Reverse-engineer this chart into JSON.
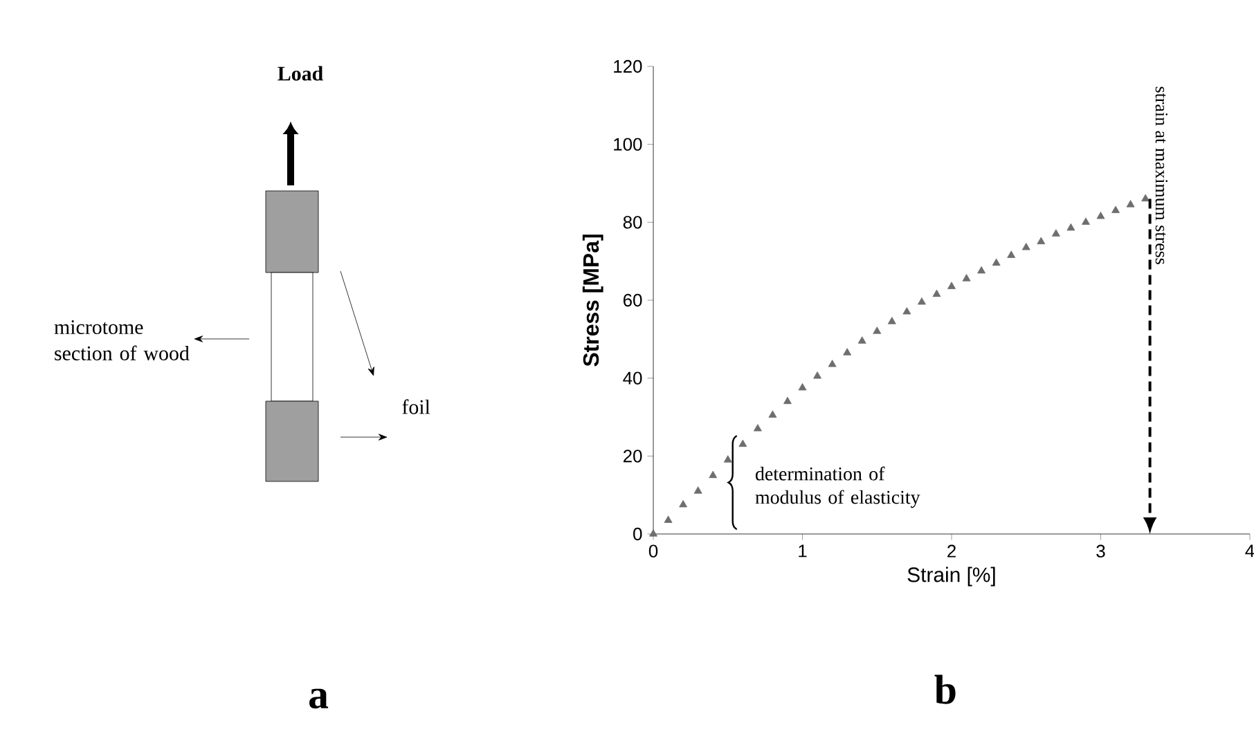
{
  "chart_data": [
    {
      "type": "other",
      "title": "a",
      "annotations": [
        "Load",
        "microtome section of wood",
        "foil"
      ]
    },
    {
      "type": "scatter",
      "title": "b",
      "xlabel": "Strain [%]",
      "ylabel": "Stress [MPa]",
      "marker": "triangle",
      "color": "#6e6e6e",
      "x": [
        0,
        0.1,
        0.2,
        0.3,
        0.4,
        0.5,
        0.6,
        0.7,
        0.8,
        0.9,
        1.0,
        1.1,
        1.2,
        1.3,
        1.4,
        1.5,
        1.6,
        1.7,
        1.8,
        1.9,
        2.0,
        2.1,
        2.2,
        2.3,
        2.4,
        2.5,
        2.6,
        2.7,
        2.8,
        2.9,
        3.0,
        3.1,
        3.2,
        3.3
      ],
      "values": [
        0,
        3.5,
        7.5,
        11,
        15,
        19,
        23,
        27,
        30.5,
        34,
        37.5,
        40.5,
        43.5,
        46.5,
        49.5,
        52,
        54.5,
        57,
        59.5,
        61.5,
        63.5,
        65.5,
        67.5,
        69.5,
        71.5,
        73.5,
        75,
        77,
        78.5,
        80,
        81.5,
        83,
        84.5,
        86
      ],
      "xlim": [
        0,
        4
      ],
      "ylim": [
        0,
        120
      ],
      "xticks": [
        0,
        1,
        2,
        3,
        4
      ],
      "yticks": [
        0,
        20,
        40,
        60,
        80,
        100,
        120
      ],
      "annotations": [
        "determination of modulus of elasticity"
      ],
      "ref_lines": [
        {
          "axis": "x",
          "value": 3.33,
          "label": "strain at maximum stress",
          "line_style": "dashed"
        }
      ]
    }
  ]
}
